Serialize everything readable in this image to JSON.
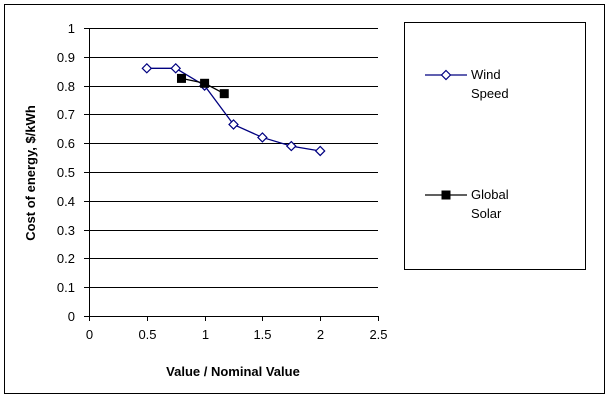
{
  "chart_data": {
    "type": "line",
    "title": "",
    "xlabel": "Value / Nominal Value",
    "ylabel": "Cost of energy, $/kWh",
    "xlim": [
      0,
      2.5
    ],
    "ylim": [
      0,
      1
    ],
    "x_ticks": [
      "0",
      "0.5",
      "1",
      "1.5",
      "2",
      "2.5"
    ],
    "y_ticks": [
      "0",
      "0.1",
      "0.2",
      "0.3",
      "0.4",
      "0.5",
      "0.6",
      "0.7",
      "0.8",
      "0.9",
      "1"
    ],
    "grid": "horizontal",
    "legend_position": "right",
    "series": [
      {
        "name_lines": [
          "Wind",
          "Speed"
        ],
        "marker": "open-diamond",
        "color": "#000080",
        "marker_stroke": "#000080",
        "x": [
          0.5,
          0.75,
          1.0,
          1.25,
          1.5,
          1.75,
          2.0
        ],
        "y": [
          0.86,
          0.86,
          0.8,
          0.665,
          0.62,
          0.59,
          0.573
        ]
      },
      {
        "name_lines": [
          "Global",
          "Solar"
        ],
        "marker": "filled-square",
        "color": "#000000",
        "marker_stroke": "#000000",
        "x": [
          0.8,
          1.0,
          1.17
        ],
        "y": [
          0.825,
          0.808,
          0.772
        ]
      }
    ]
  }
}
